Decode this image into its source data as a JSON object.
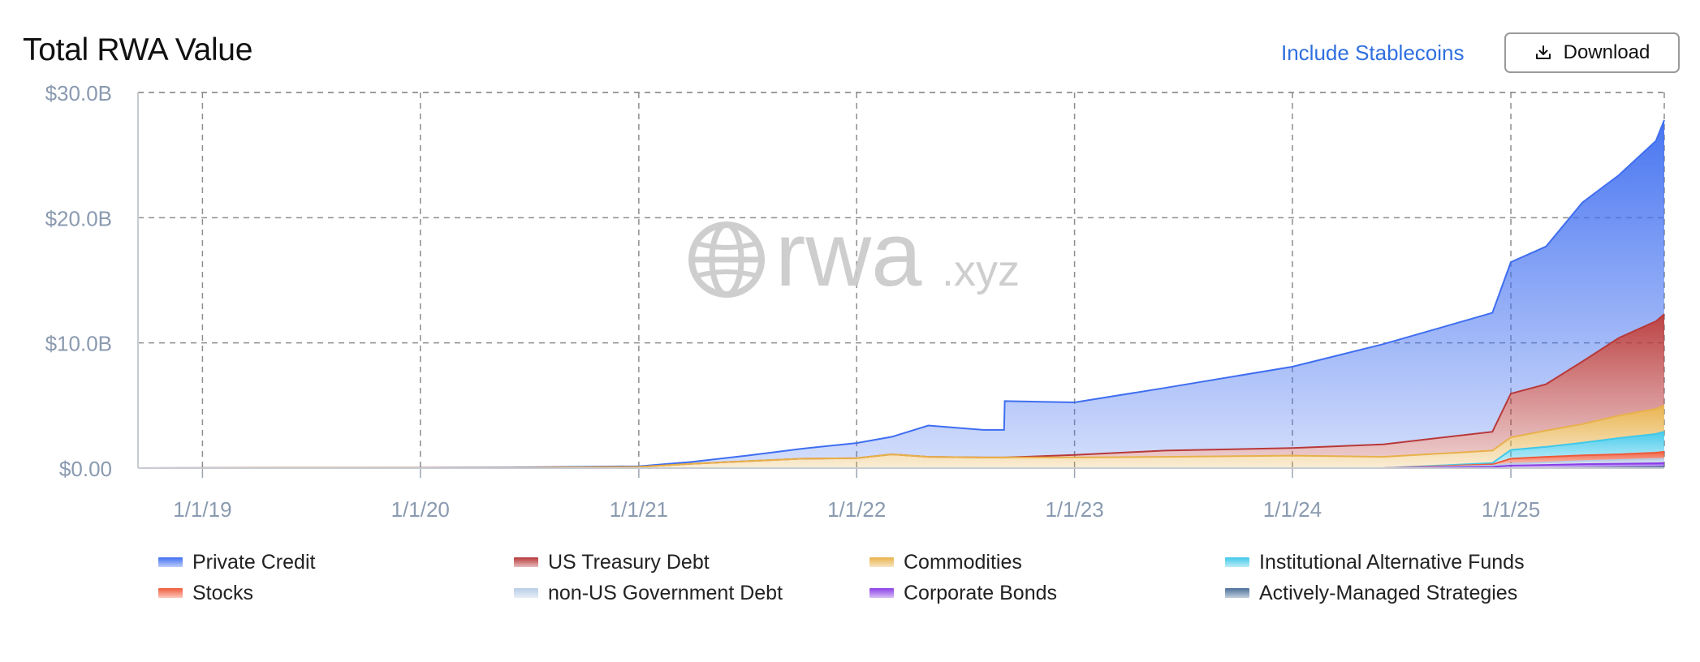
{
  "header": {
    "title": "Total RWA Value",
    "toggle_label": "Include Stablecoins",
    "download_label": "Download"
  },
  "watermark": {
    "text_main": "rwa",
    "text_suffix": ".xyz"
  },
  "chart_data": {
    "type": "area",
    "stacked": true,
    "title": "Total RWA Value",
    "xlabel": "",
    "ylabel": "",
    "x_ticks": [
      "1/1/19",
      "1/1/20",
      "1/1/21",
      "1/1/22",
      "1/1/23",
      "1/1/24",
      "1/1/25"
    ],
    "y_ticks": [
      "$0.00",
      "$10.0B",
      "$20.0B",
      "$30.0B"
    ],
    "ylim": [
      0,
      30
    ],
    "y_unit": "billions USD",
    "xlim": [
      "2018-09-15",
      "2025-09-15"
    ],
    "grid": true,
    "legend_position": "bottom",
    "x": [
      "2018-09-15",
      "2019-06-01",
      "2020-06-01",
      "2021-01-01",
      "2021-04-01",
      "2021-07-01",
      "2021-10-01",
      "2022-01-01",
      "2022-03-01",
      "2022-05-01",
      "2022-08-01",
      "2022-09-05",
      "2022-09-06",
      "2023-01-01",
      "2023-06-01",
      "2024-01-01",
      "2024-06-01",
      "2024-12-01",
      "2025-01-01",
      "2025-03-01",
      "2025-05-01",
      "2025-07-01",
      "2025-09-01",
      "2025-09-15"
    ],
    "series": [
      {
        "name": "Actively-Managed Strategies",
        "color": "#4a6f99",
        "values": [
          0,
          0,
          0,
          0,
          0,
          0,
          0,
          0,
          0,
          0,
          0,
          0,
          0,
          0,
          0,
          0,
          0,
          0,
          0,
          0,
          0.02,
          0.05,
          0.08,
          0.1
        ]
      },
      {
        "name": "Corporate Bonds",
        "color": "#8a3fe6",
        "values": [
          0,
          0,
          0,
          0,
          0,
          0,
          0,
          0,
          0,
          0,
          0,
          0,
          0,
          0,
          0,
          0,
          0,
          0.1,
          0.2,
          0.25,
          0.3,
          0.3,
          0.3,
          0.3
        ]
      },
      {
        "name": "non-US Government Debt",
        "color": "#b9cde6",
        "values": [
          0,
          0,
          0,
          0,
          0,
          0,
          0,
          0,
          0,
          0,
          0,
          0,
          0,
          0,
          0,
          0,
          0,
          0.1,
          0.15,
          0.2,
          0.25,
          0.3,
          0.35,
          0.35
        ]
      },
      {
        "name": "Stocks",
        "color": "#f05a3a",
        "values": [
          0,
          0,
          0,
          0,
          0,
          0,
          0,
          0,
          0,
          0,
          0,
          0,
          0,
          0,
          0,
          0,
          0,
          0.1,
          0.4,
          0.45,
          0.45,
          0.45,
          0.5,
          0.55
        ]
      },
      {
        "name": "Institutional Alternative Funds",
        "color": "#3ec8ea",
        "values": [
          0,
          0,
          0,
          0,
          0,
          0,
          0,
          0,
          0,
          0,
          0,
          0,
          0,
          0,
          0,
          0,
          0,
          0.1,
          0.7,
          0.8,
          1.0,
          1.3,
          1.5,
          1.6
        ]
      },
      {
        "name": "Commodities",
        "color": "#e8b14a",
        "values": [
          0,
          0.01,
          0.02,
          0.1,
          0.35,
          0.55,
          0.75,
          0.8,
          1.1,
          0.9,
          0.85,
          0.85,
          0.85,
          0.85,
          0.9,
          1.0,
          0.9,
          1.0,
          1.0,
          1.3,
          1.5,
          1.8,
          2.0,
          2.1
        ]
      },
      {
        "name": "US Treasury Debt",
        "color": "#b8393a",
        "values": [
          0,
          0,
          0,
          0,
          0,
          0,
          0,
          0,
          0,
          0,
          0,
          0,
          0,
          0.2,
          0.5,
          0.6,
          1.0,
          1.5,
          3.5,
          3.7,
          5.0,
          6.2,
          7.0,
          7.3
        ]
      },
      {
        "name": "Private Credit",
        "color": "#3f6ef0",
        "values": [
          0,
          0,
          0.03,
          0.05,
          0.15,
          0.45,
          0.8,
          1.2,
          1.4,
          2.5,
          2.2,
          2.2,
          4.5,
          4.2,
          5.0,
          6.5,
          8.0,
          9.5,
          10.5,
          11.0,
          12.7,
          13.0,
          14.4,
          15.5
        ]
      }
    ]
  },
  "legend": {
    "items": [
      {
        "label": "Private Credit",
        "color": "#3f6ef0"
      },
      {
        "label": "US Treasury Debt",
        "color": "#b8393a"
      },
      {
        "label": "Commodities",
        "color": "#e8b14a"
      },
      {
        "label": "Institutional Alternative Funds",
        "color": "#3ec8ea"
      },
      {
        "label": "Stocks",
        "color": "#f05a3a"
      },
      {
        "label": "non-US Government Debt",
        "color": "#b9cde6"
      },
      {
        "label": "Corporate Bonds",
        "color": "#8a3fe6"
      },
      {
        "label": "Actively-Managed Strategies",
        "color": "#4a6f99"
      }
    ]
  }
}
